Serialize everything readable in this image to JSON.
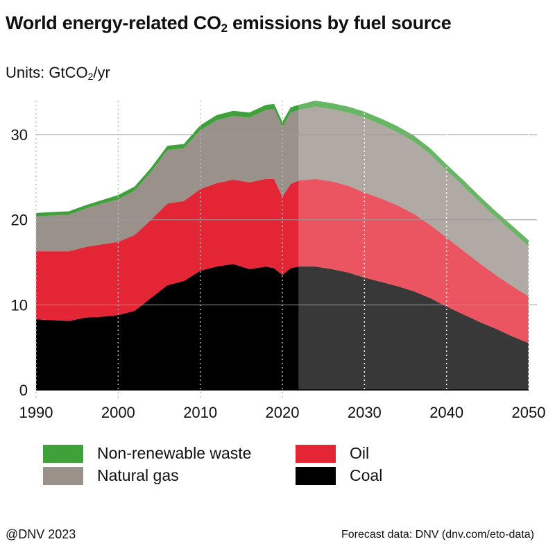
{
  "title": {
    "main": "World energy-related CO",
    "sub": "2",
    "tail": " emissions by fuel source"
  },
  "units": {
    "prefix": "Units: GtCO",
    "sub": "2",
    "suffix": "/yr"
  },
  "footer": {
    "left": "@DNV 2023",
    "right": "Forecast data: DNV (dnv.com/eto-data)"
  },
  "chart_data": {
    "type": "area",
    "stacked": true,
    "forecast_start": 2022,
    "xlim": [
      1990,
      2050
    ],
    "ylim": [
      0,
      34
    ],
    "x_ticks": [
      1990,
      2000,
      2010,
      2020,
      2030,
      2040,
      2050
    ],
    "y_ticks": [
      0,
      10,
      20,
      30
    ],
    "grid": "horizontal solid lines at 10, 20, 30; vertical dotted lines at each decade",
    "legend_position": "bottom",
    "x": [
      1990,
      1992,
      1994,
      1996,
      1998,
      2000,
      2002,
      2004,
      2006,
      2008,
      2010,
      2012,
      2014,
      2016,
      2018,
      2019,
      2020,
      2021,
      2022,
      2024,
      2026,
      2028,
      2030,
      2032,
      2034,
      2036,
      2038,
      2040,
      2042,
      2044,
      2046,
      2048,
      2050
    ],
    "series": [
      {
        "name": "Coal",
        "color": "#000000",
        "values": [
          8.3,
          8.2,
          8.1,
          8.5,
          8.6,
          8.8,
          9.3,
          10.8,
          12.3,
          12.8,
          14.0,
          14.5,
          14.8,
          14.2,
          14.5,
          14.3,
          13.5,
          14.3,
          14.5,
          14.5,
          14.2,
          13.8,
          13.2,
          12.7,
          12.2,
          11.6,
          10.8,
          9.8,
          8.9,
          8.0,
          7.2,
          6.3,
          5.5
        ]
      },
      {
        "name": "Oil",
        "color": "#e42535",
        "values": [
          8.0,
          8.1,
          8.2,
          8.3,
          8.5,
          8.6,
          8.9,
          9.2,
          9.6,
          9.4,
          9.6,
          9.8,
          9.9,
          10.2,
          10.3,
          10.5,
          9.2,
          9.9,
          10.1,
          10.3,
          10.3,
          10.2,
          10.0,
          9.8,
          9.5,
          9.1,
          8.6,
          8.1,
          7.5,
          6.9,
          6.3,
          5.9,
          5.5
        ]
      },
      {
        "name": "Natural gas",
        "color": "#9a918a",
        "values": [
          4.1,
          4.2,
          4.3,
          4.5,
          4.8,
          5.0,
          5.2,
          5.6,
          6.3,
          6.2,
          6.9,
          7.4,
          7.5,
          7.6,
          8.1,
          8.2,
          8.2,
          8.4,
          8.3,
          8.5,
          8.5,
          8.6,
          8.8,
          8.7,
          8.6,
          8.5,
          8.3,
          7.9,
          7.6,
          7.2,
          6.8,
          6.4,
          5.9
        ]
      },
      {
        "name": "Non-renewable waste",
        "color": "#3ea13a",
        "values": [
          0.4,
          0.4,
          0.4,
          0.4,
          0.4,
          0.5,
          0.5,
          0.5,
          0.5,
          0.5,
          0.6,
          0.6,
          0.6,
          0.6,
          0.6,
          0.6,
          0.6,
          0.6,
          0.6,
          0.7,
          0.7,
          0.7,
          0.7,
          0.7,
          0.7,
          0.7,
          0.7,
          0.7,
          0.7,
          0.7,
          0.7,
          0.7,
          0.7
        ]
      }
    ]
  },
  "legend": [
    {
      "label": "Non-renewable waste",
      "color": "#3ea13a"
    },
    {
      "label": "Oil",
      "color": "#e42535"
    },
    {
      "label": "Natural gas",
      "color": "#9a918a"
    },
    {
      "label": "Coal",
      "color": "#000000"
    }
  ]
}
